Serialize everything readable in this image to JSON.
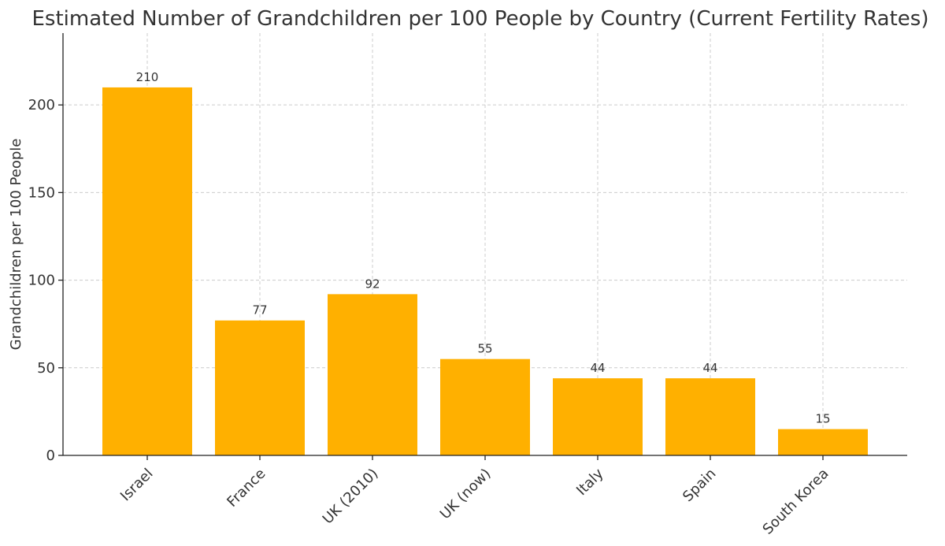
{
  "chart_data": {
    "type": "bar",
    "title": "Estimated Number of Grandchildren per 100 People by Country (Current Fertility Rates)",
    "xlabel": "",
    "ylabel": "Grandchildren per 100 People",
    "categories": [
      "Israel",
      "France",
      "UK (2010)",
      "UK (now)",
      "Italy",
      "Spain",
      "South Korea"
    ],
    "values": [
      210,
      77,
      92,
      55,
      44,
      44,
      15
    ],
    "data_labels": [
      "210",
      "77",
      "92",
      "55",
      "44",
      "44",
      "15"
    ],
    "ylim": [
      0,
      241
    ],
    "yticks": [
      0,
      50,
      100,
      150,
      200
    ],
    "grid": true,
    "bar_color": "#FFB000"
  }
}
